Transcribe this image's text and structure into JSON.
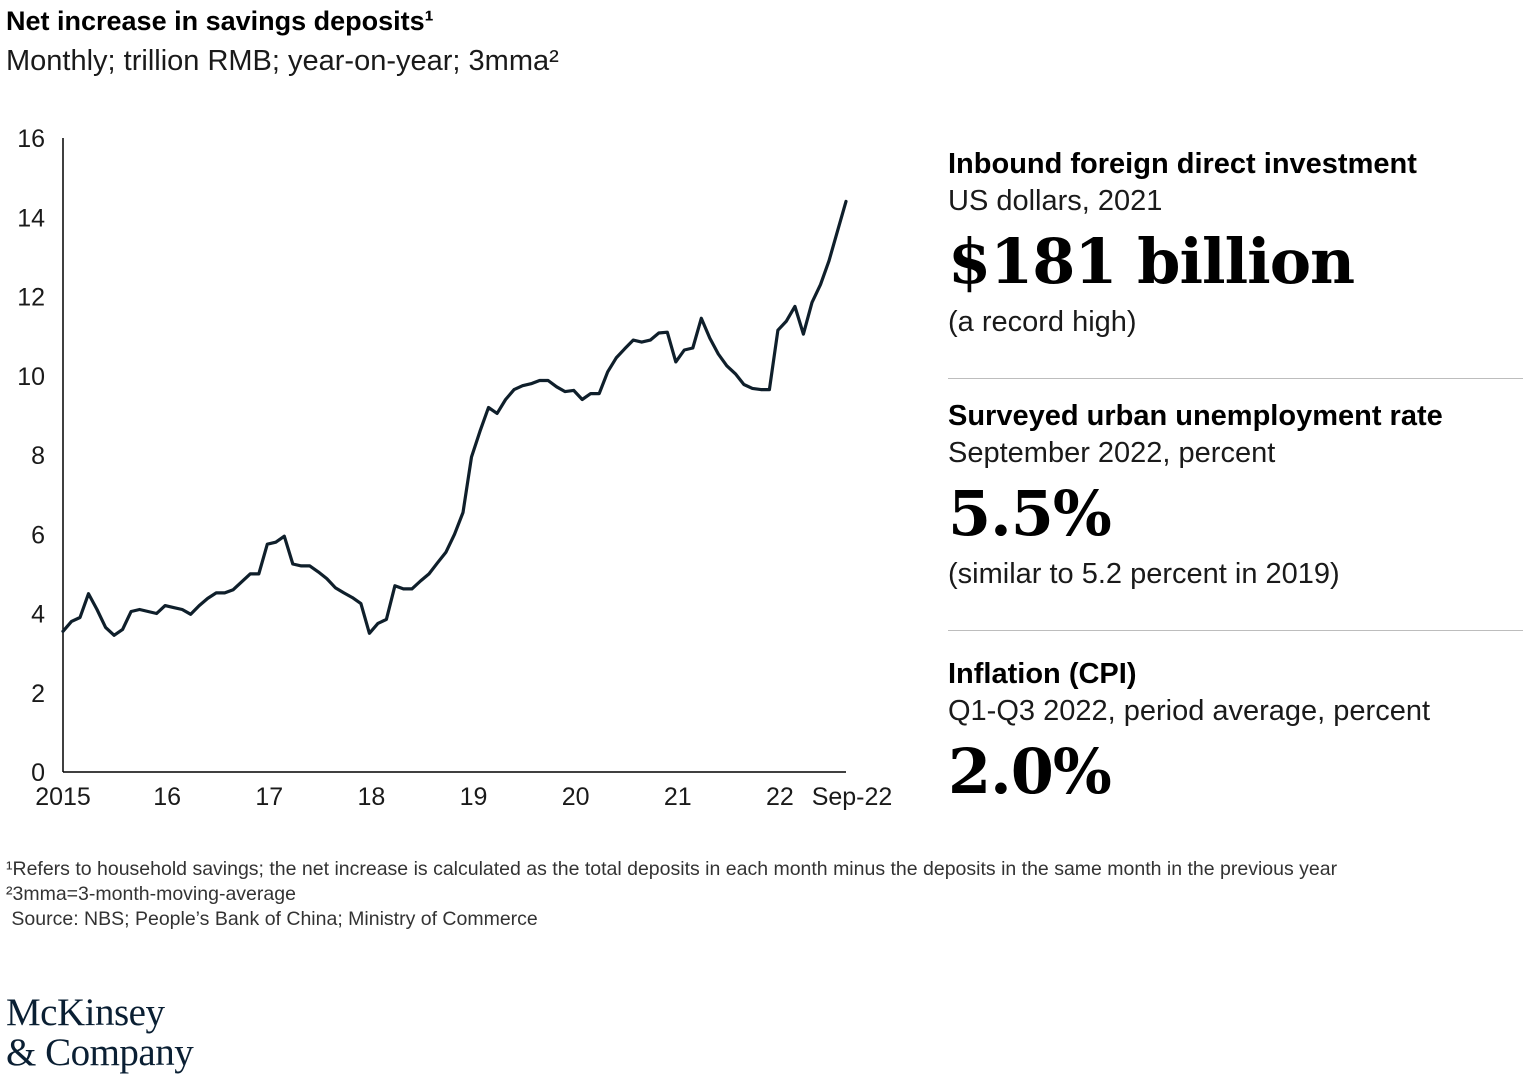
{
  "chart_data": {
    "type": "line",
    "title": "Net increase in savings deposits¹",
    "subtitle": "Monthly; trillion RMB; year-on-year; 3mma²",
    "ylim": [
      0,
      16
    ],
    "yticks": [
      0,
      2,
      4,
      6,
      8,
      10,
      12,
      14,
      16
    ],
    "xticks": [
      "2015",
      "16",
      "17",
      "18",
      "19",
      "20",
      "21",
      "22",
      "Sep-22"
    ],
    "grid": false,
    "series": [
      {
        "color": "#0f1f2b",
        "x": [
          "2015-01",
          "2015-02",
          "2015-03",
          "2015-04",
          "2015-05",
          "2015-06",
          "2015-07",
          "2015-08",
          "2015-09",
          "2015-10",
          "2015-11",
          "2015-12",
          "2016-01",
          "2016-02",
          "2016-03",
          "2016-04",
          "2016-05",
          "2016-06",
          "2016-07",
          "2016-08",
          "2016-09",
          "2016-10",
          "2016-11",
          "2016-12",
          "2017-01",
          "2017-02",
          "2017-03",
          "2017-04",
          "2017-05",
          "2017-06",
          "2017-07",
          "2017-08",
          "2017-09",
          "2017-10",
          "2017-11",
          "2017-12",
          "2018-01",
          "2018-02",
          "2018-03",
          "2018-04",
          "2018-05",
          "2018-06",
          "2018-07",
          "2018-08",
          "2018-09",
          "2018-10",
          "2018-11",
          "2018-12",
          "2019-01",
          "2019-02",
          "2019-03",
          "2019-04",
          "2019-05",
          "2019-06",
          "2019-07",
          "2019-08",
          "2019-09",
          "2019-10",
          "2019-11",
          "2019-12",
          "2020-01",
          "2020-02",
          "2020-03",
          "2020-04",
          "2020-05",
          "2020-06",
          "2020-07",
          "2020-08",
          "2020-09",
          "2020-10",
          "2020-11",
          "2020-12",
          "2021-01",
          "2021-02",
          "2021-03",
          "2021-04",
          "2021-05",
          "2021-06",
          "2021-07",
          "2021-08",
          "2021-09",
          "2021-10",
          "2021-11",
          "2021-12",
          "2022-01",
          "2022-02",
          "2022-03",
          "2022-04",
          "2022-05",
          "2022-06",
          "2022-07",
          "2022-08",
          "2022-09"
        ],
        "y": [
          3.55,
          3.8,
          3.9,
          4.5,
          4.1,
          3.65,
          3.45,
          3.6,
          4.05,
          4.1,
          4.05,
          4.0,
          4.2,
          4.15,
          4.1,
          3.98,
          4.2,
          4.38,
          4.52,
          4.52,
          4.6,
          4.8,
          5.0,
          5.0,
          5.75,
          5.8,
          5.95,
          5.25,
          5.2,
          5.2,
          5.05,
          4.88,
          4.65,
          4.52,
          4.4,
          4.25,
          3.5,
          3.75,
          3.85,
          4.7,
          4.62,
          4.62,
          4.82,
          5.0,
          5.28,
          5.55,
          6.0,
          6.55,
          7.95,
          8.6,
          9.2,
          9.05,
          9.4,
          9.65,
          9.75,
          9.8,
          9.88,
          9.88,
          9.72,
          9.6,
          9.63,
          9.4,
          9.55,
          9.55,
          10.1,
          10.45,
          10.68,
          10.9,
          10.85,
          10.9,
          11.08,
          11.1,
          10.35,
          10.65,
          10.7,
          11.45,
          10.95,
          10.55,
          10.25,
          10.05,
          9.78,
          9.68,
          9.65,
          9.65,
          11.15,
          11.38,
          11.75,
          11.05,
          11.85,
          12.3,
          12.9,
          13.65,
          14.4
        ]
      }
    ]
  },
  "stats": [
    {
      "title": "Inbound foreign direct investment",
      "subtitle": "US dollars, 2021",
      "value": "$181 billion",
      "note": "(a record high)"
    },
    {
      "title": "Surveyed urban unemployment rate",
      "subtitle": "September 2022, percent",
      "value": "5.5%",
      "note": "(similar to 5.2 percent in 2019)"
    },
    {
      "title": "Inflation (CPI)",
      "subtitle": "Q1-Q3 2022, period average, percent",
      "value": "2.0%",
      "note": ""
    }
  ],
  "footnotes": {
    "note1": "¹Refers to household savings; the net increase is calculated as the total deposits in each month minus the deposits in the same month in the previous year",
    "note2": "²3mma=3-month-moving-average",
    "source": " Source: NBS; People’s Bank of China; Ministry of Commerce"
  },
  "logo": {
    "line1": "McKinsey",
    "line2": "& Company"
  }
}
